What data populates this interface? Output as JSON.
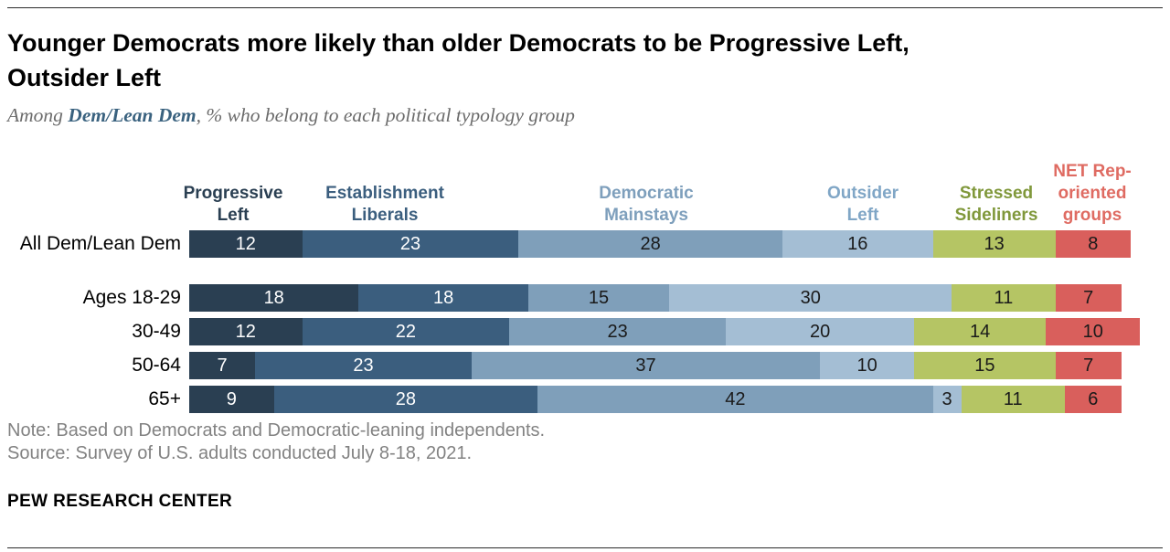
{
  "page": {
    "title_line1": "Younger Democrats more likely than older Democrats to be Progressive Left,",
    "title_line2": "Outsider Left",
    "subtitle_prefix": "Among ",
    "subtitle_highlight": "Dem/Lean Dem",
    "subtitle_suffix": ", % who belong to each political typology group",
    "note_line1": "Note: Based on Democrats and Democratic-leaning independents.",
    "note_line2": "Source: Survey of U.S. adults conducted July 8-18, 2021.",
    "footer": "PEW RESEARCH CENTER"
  },
  "colors": {
    "rule": "#2b2b2b",
    "subtitle_text": "#6b6b6b",
    "subtitle_highlight": "#3a627f",
    "note_text": "#828282",
    "value_text_light": "#ffffff",
    "value_text_dark": "#1a1a1a"
  },
  "chart_data": {
    "type": "bar",
    "orientation": "horizontal",
    "stacked": true,
    "unit": "%",
    "title": "Younger Democrats more likely than older Democrats to be Progressive Left, Outsider Left",
    "subtitle": "Among Dem/Lean Dem, % who belong to each political typology group",
    "categories": [
      "All Dem/Lean Dem",
      "Ages 18-29",
      "30-49",
      "50-64",
      "65+"
    ],
    "series": [
      {
        "name": "Progressive Left",
        "color": "#2a3f52",
        "header_color": "#2a3f52",
        "value_text_color": "#ffffff",
        "values": [
          12,
          18,
          12,
          7,
          9
        ]
      },
      {
        "name": "Establishment Liberals",
        "color": "#3b5e7e",
        "header_color": "#3b5e7e",
        "value_text_color": "#ffffff",
        "values": [
          23,
          18,
          22,
          23,
          28
        ]
      },
      {
        "name": "Democratic Mainstays",
        "color": "#7f9fba",
        "header_color": "#7e9fbc",
        "value_text_color": "#1a1a1a",
        "values": [
          28,
          15,
          23,
          37,
          42
        ]
      },
      {
        "name": "Outsider Left",
        "color": "#a4bed4",
        "header_color": "#80a6c6",
        "value_text_color": "#1a1a1a",
        "values": [
          16,
          30,
          20,
          10,
          3
        ]
      },
      {
        "name": "Stressed Sideliners",
        "color": "#b5c564",
        "header_color": "#80983b",
        "value_text_color": "#1a1a1a",
        "values": [
          13,
          11,
          14,
          15,
          11
        ]
      },
      {
        "name": "NET Rep-oriented groups",
        "color": "#d95f5c",
        "header_color": "#df6b62",
        "value_text_color": "#1a1a1a",
        "values": [
          8,
          7,
          10,
          7,
          6
        ]
      }
    ],
    "row_totals": [
      100,
      99,
      101,
      99,
      99
    ],
    "legend_position": "column-headers-above-bars",
    "grid": false,
    "xlim": [
      0,
      101
    ]
  }
}
